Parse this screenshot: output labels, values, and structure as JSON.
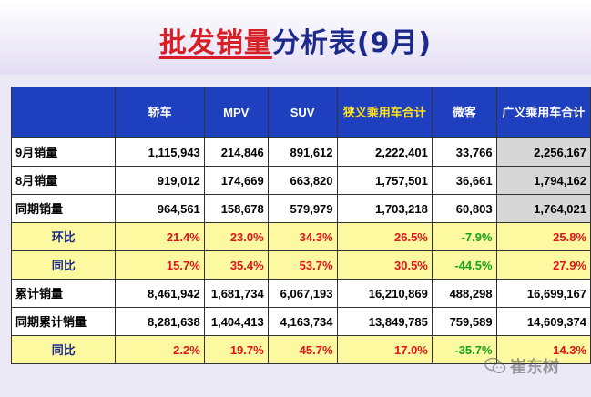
{
  "title": {
    "part_red": "批发销量",
    "part_navy": "分析表(9月)"
  },
  "table": {
    "headers": [
      "",
      "轿车",
      "MPV",
      "SUV",
      "狭义乘用车合计",
      "微客",
      "广义乘用车合计"
    ],
    "rows": [
      {
        "label": "9月销量",
        "values": [
          "1,115,943",
          "214,846",
          "891,612",
          "2,222,401",
          "33,766",
          "2,256,167"
        ]
      },
      {
        "label": "8月销量",
        "values": [
          "919,012",
          "174,669",
          "663,820",
          "1,757,501",
          "36,661",
          "1,794,162"
        ]
      },
      {
        "label": "同期销量",
        "values": [
          "964,561",
          "158,678",
          "579,979",
          "1,703,218",
          "60,803",
          "1,764,021"
        ]
      },
      {
        "label": "环比",
        "values": [
          "21.4%",
          "23.0%",
          "34.3%",
          "26.5%",
          "-7.9%",
          "25.8%"
        ]
      },
      {
        "label": "同比",
        "values": [
          "15.7%",
          "35.4%",
          "53.7%",
          "30.5%",
          "-44.5%",
          "27.9%"
        ]
      },
      {
        "label": "累计销量",
        "values": [
          "8,461,942",
          "1,681,734",
          "6,067,193",
          "16,210,869",
          "488,298",
          "16,699,167"
        ]
      },
      {
        "label": "同期累计销量",
        "values": [
          "8,281,638",
          "1,404,413",
          "4,163,734",
          "13,849,785",
          "759,589",
          "14,609,374"
        ]
      },
      {
        "label": "同比",
        "values": [
          "2.2%",
          "19.7%",
          "45.7%",
          "17.0%",
          "-35.7%",
          "14.3%"
        ]
      }
    ]
  },
  "watermark": {
    "icon": "wechat-icon",
    "text": "崔东树"
  }
}
